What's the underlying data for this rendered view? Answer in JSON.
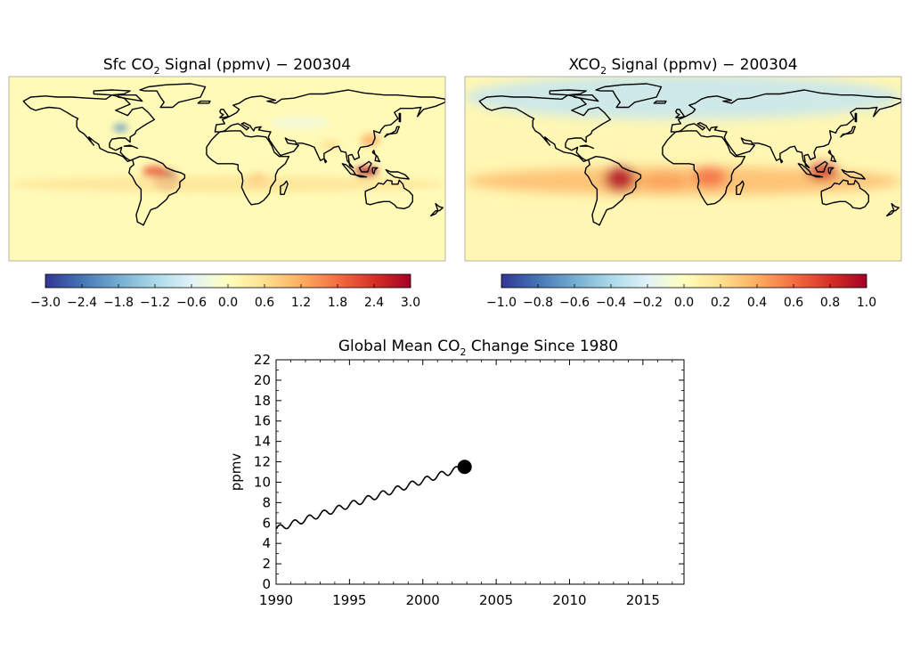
{
  "chart_data": [
    {
      "type": "heatmap",
      "title_prefix": "Sfc CO",
      "title_sub": "2",
      "title_suffix": " Signal (ppmv) − 200304",
      "colorbar": {
        "ticks": [
          "−3.0",
          "−2.4",
          "−1.8",
          "−1.2",
          "−0.6",
          "0.0",
          "0.6",
          "1.2",
          "1.8",
          "2.4",
          "3.0"
        ],
        "range": [
          -3.0,
          3.0
        ],
        "colors": [
          "#313695",
          "#4575b4",
          "#74add1",
          "#abd9e9",
          "#e0f3f8",
          "#ffffbf",
          "#fee090",
          "#fdae61",
          "#f46d43",
          "#d73027",
          "#a50026"
        ]
      },
      "background_value": 0.1,
      "hotspots": [
        {
          "region": "South America (Brazil)",
          "lon": -50,
          "lat": -12,
          "value": 3.0,
          "rx": 11,
          "ry": 10
        },
        {
          "region": "South America (north)",
          "lon": -60,
          "lat": -3,
          "value": 2.0,
          "rx": 10,
          "ry": 6
        },
        {
          "region": "Indonesia",
          "lon": 115,
          "lat": -3,
          "value": 2.8,
          "rx": 10,
          "ry": 5
        },
        {
          "region": "Southern Africa",
          "lon": 25,
          "lat": -12,
          "value": 1.5,
          "rx": 10,
          "ry": 7
        },
        {
          "region": "East Asia",
          "lon": 118,
          "lat": 28,
          "value": 1.2,
          "rx": 8,
          "ry": 6
        },
        {
          "region": "Eastern North America",
          "lon": -88,
          "lat": 40,
          "value": -2.0,
          "rx": 6,
          "ry": 4
        },
        {
          "region": "Central Asia",
          "lon": 60,
          "lat": 45,
          "value": -0.3,
          "rx": 25,
          "ry": 6
        },
        {
          "region": "South Asia",
          "lon": 85,
          "lat": 23,
          "value": 0.6,
          "rx": 8,
          "ry": 5
        },
        {
          "region": "Southern tropics band",
          "lon": 0,
          "lat": -15,
          "value": 0.5,
          "rx": 180,
          "ry": 8
        }
      ]
    },
    {
      "type": "heatmap",
      "title_prefix": "XCO",
      "title_sub": "2",
      "title_suffix": " Signal (ppmv) − 200304",
      "colorbar": {
        "ticks": [
          "−1.0",
          "−0.8",
          "−0.6",
          "−0.4",
          "−0.2",
          "0.0",
          "0.2",
          "0.4",
          "0.6",
          "0.8",
          "1.0"
        ],
        "range": [
          -1.0,
          1.0
        ],
        "colors": [
          "#313695",
          "#4575b4",
          "#74add1",
          "#abd9e9",
          "#e0f3f8",
          "#ffffbf",
          "#fee090",
          "#fdae61",
          "#f46d43",
          "#d73027",
          "#a50026"
        ]
      },
      "background_value": 0.05,
      "hotspots": [
        {
          "region": "Northern high latitudes",
          "lon": 0,
          "lat": 70,
          "value": -0.3,
          "rx": 180,
          "ry": 22
        },
        {
          "region": "Southern tropics band",
          "lon": 0,
          "lat": -12,
          "value": 0.35,
          "rx": 180,
          "ry": 14
        },
        {
          "region": "South America (Brazil)",
          "lon": -52,
          "lat": -10,
          "value": 0.95,
          "rx": 13,
          "ry": 12
        },
        {
          "region": "Southern Africa",
          "lon": 22,
          "lat": -8,
          "value": 0.6,
          "rx": 14,
          "ry": 10
        },
        {
          "region": "Indonesia",
          "lon": 115,
          "lat": -3,
          "value": 0.85,
          "rx": 13,
          "ry": 8
        },
        {
          "region": "Atlantic outflow",
          "lon": -15,
          "lat": -12,
          "value": 0.45,
          "rx": 20,
          "ry": 8
        }
      ]
    },
    {
      "type": "line",
      "title_prefix": "Global Mean CO",
      "title_sub": "2",
      "title_suffix": " Change Since 1980",
      "ylabel": "ppmv",
      "xlim": [
        1990,
        2017.8
      ],
      "ylim": [
        0,
        22
      ],
      "xticks": [
        "1990",
        "1995",
        "2000",
        "2005",
        "2010",
        "2015"
      ],
      "yticks": [
        "0",
        "2",
        "4",
        "6",
        "8",
        "10",
        "12",
        "14",
        "16",
        "18",
        "20",
        "22"
      ],
      "series": [
        {
          "start": 1990.0,
          "end": 2002.85,
          "start_value": 5.4,
          "end_value": 11.5,
          "seasonal_amplitude": 0.3,
          "points_per_year": 24
        }
      ],
      "current_point": {
        "x": 2002.85,
        "y": 11.5
      }
    }
  ]
}
